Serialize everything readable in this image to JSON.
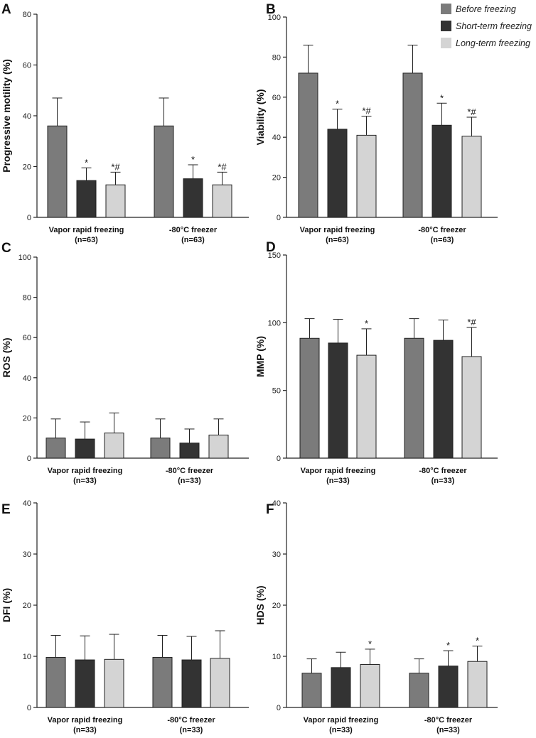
{
  "colors": {
    "before_freezing": "#7b7b7b",
    "short_term_freezing": "#333333",
    "long_term_freezing": "#d4d4d4",
    "axis": "#222222"
  },
  "legend": {
    "position": "top-right",
    "entries": [
      {
        "label": "Before freezing",
        "color_key": "before_freezing"
      },
      {
        "label": "Short-term  freezing",
        "color_key": "short_term_freezing"
      },
      {
        "label": "Long-term  freezing",
        "color_key": "long_term_freezing"
      }
    ]
  },
  "chart_data": [
    {
      "panel": "A",
      "type": "bar",
      "ylabel": "Progressive motility (%)",
      "ylim": [
        0,
        80
      ],
      "yticks": [
        0,
        20,
        40,
        60,
        80
      ],
      "categories": [
        {
          "name": "Vapor rapid freezing",
          "n": "(n=63)"
        },
        {
          "name": "-80°C freezer",
          "n": "(n=63)"
        }
      ],
      "series": [
        {
          "name": "Before freezing",
          "values": [
            36,
            36
          ],
          "errors": [
            11,
            11
          ],
          "sig": [
            "",
            ""
          ]
        },
        {
          "name": "Short-term  freezing",
          "values": [
            14.5,
            15.2
          ],
          "errors": [
            5,
            5.5
          ],
          "sig": [
            "*",
            "*"
          ]
        },
        {
          "name": "Long-term  freezing",
          "values": [
            12.8,
            12.8
          ],
          "errors": [
            5,
            5
          ],
          "sig": [
            "*#",
            "*#"
          ]
        }
      ]
    },
    {
      "panel": "B",
      "type": "bar",
      "ylabel": "Viability (%)",
      "ylim": [
        0,
        100
      ],
      "yticks": [
        0,
        20,
        40,
        60,
        80,
        100
      ],
      "categories": [
        {
          "name": "Vapor rapid freezing",
          "n": "(n=63)"
        },
        {
          "name": "-80°C freezer",
          "n": "(n=63)"
        }
      ],
      "series": [
        {
          "name": "Before freezing",
          "values": [
            72,
            72
          ],
          "errors": [
            14,
            14
          ],
          "sig": [
            "",
            ""
          ]
        },
        {
          "name": "Short-term  freezing",
          "values": [
            44,
            46
          ],
          "errors": [
            10,
            11
          ],
          "sig": [
            "*",
            "*"
          ]
        },
        {
          "name": "Long-term  freezing",
          "values": [
            41,
            40.5
          ],
          "errors": [
            9.5,
            9.5
          ],
          "sig": [
            "*#",
            "*#"
          ]
        }
      ]
    },
    {
      "panel": "C",
      "type": "bar",
      "ylabel": "ROS (%)",
      "ylim": [
        0,
        100
      ],
      "yticks": [
        0,
        20,
        40,
        60,
        80,
        100
      ],
      "categories": [
        {
          "name": "Vapor rapid freezing",
          "n": "(n=33)"
        },
        {
          "name": "-80°C freezer",
          "n": "(n=33)"
        }
      ],
      "series": [
        {
          "name": "Before freezing",
          "values": [
            10,
            10
          ],
          "errors": [
            9.5,
            9.5
          ],
          "sig": [
            "",
            ""
          ]
        },
        {
          "name": "Short-term  freezing",
          "values": [
            9.5,
            7.5
          ],
          "errors": [
            8.5,
            7
          ],
          "sig": [
            "",
            ""
          ]
        },
        {
          "name": "Long-term  freezing",
          "values": [
            12.5,
            11.5
          ],
          "errors": [
            10,
            8
          ],
          "sig": [
            "",
            ""
          ]
        }
      ]
    },
    {
      "panel": "D",
      "type": "bar",
      "ylabel": "MMP (%)",
      "ylim": [
        0,
        150
      ],
      "yticks": [
        0,
        50,
        100,
        150
      ],
      "categories": [
        {
          "name": "Vapor rapid freezing",
          "n": "(n=33)"
        },
        {
          "name": "-80°C freezer",
          "n": "(n=33)"
        }
      ],
      "series": [
        {
          "name": "Before freezing",
          "values": [
            88.5,
            88.5
          ],
          "errors": [
            14.5,
            14.5
          ],
          "sig": [
            "",
            ""
          ]
        },
        {
          "name": "Short-term  freezing",
          "values": [
            85,
            87
          ],
          "errors": [
            17.5,
            15
          ],
          "sig": [
            "",
            ""
          ]
        },
        {
          "name": "Long-term  freezing",
          "values": [
            76,
            75
          ],
          "errors": [
            19.5,
            21.5
          ],
          "sig": [
            "*",
            "*#"
          ]
        }
      ]
    },
    {
      "panel": "E",
      "type": "bar",
      "ylabel": "DFI (%)",
      "ylim": [
        0,
        40
      ],
      "yticks": [
        0,
        10,
        20,
        30,
        40
      ],
      "categories": [
        {
          "name": "Vapor rapid freezing",
          "n": "(n=33)"
        },
        {
          "name": "-80°C freezer",
          "n": "(n=33)"
        }
      ],
      "series": [
        {
          "name": "Before freezing",
          "values": [
            9.8,
            9.8
          ],
          "errors": [
            4.3,
            4.3
          ],
          "sig": [
            "",
            ""
          ]
        },
        {
          "name": "Short-term  freezing",
          "values": [
            9.3,
            9.3
          ],
          "errors": [
            4.7,
            4.6
          ],
          "sig": [
            "",
            ""
          ]
        },
        {
          "name": "Long-term  freezing",
          "values": [
            9.4,
            9.6
          ],
          "errors": [
            4.9,
            5.4
          ],
          "sig": [
            "",
            ""
          ]
        }
      ]
    },
    {
      "panel": "F",
      "type": "bar",
      "ylabel": "HDS (%)",
      "ylim": [
        0,
        40
      ],
      "yticks": [
        0,
        10,
        20,
        30,
        40
      ],
      "categories": [
        {
          "name": "Vapor rapid freezing",
          "n": "(n=33)"
        },
        {
          "name": "-80°C freezer",
          "n": "(n=33)"
        }
      ],
      "series": [
        {
          "name": "Before freezing",
          "values": [
            6.7,
            6.7
          ],
          "errors": [
            2.8,
            2.8
          ],
          "sig": [
            "",
            ""
          ]
        },
        {
          "name": "Short-term  freezing",
          "values": [
            7.8,
            8.1
          ],
          "errors": [
            3,
            3
          ],
          "sig": [
            "",
            "*"
          ]
        },
        {
          "name": "Long-term  freezing",
          "values": [
            8.4,
            9
          ],
          "errors": [
            3,
            3
          ],
          "sig": [
            "*",
            "*"
          ]
        }
      ]
    }
  ]
}
